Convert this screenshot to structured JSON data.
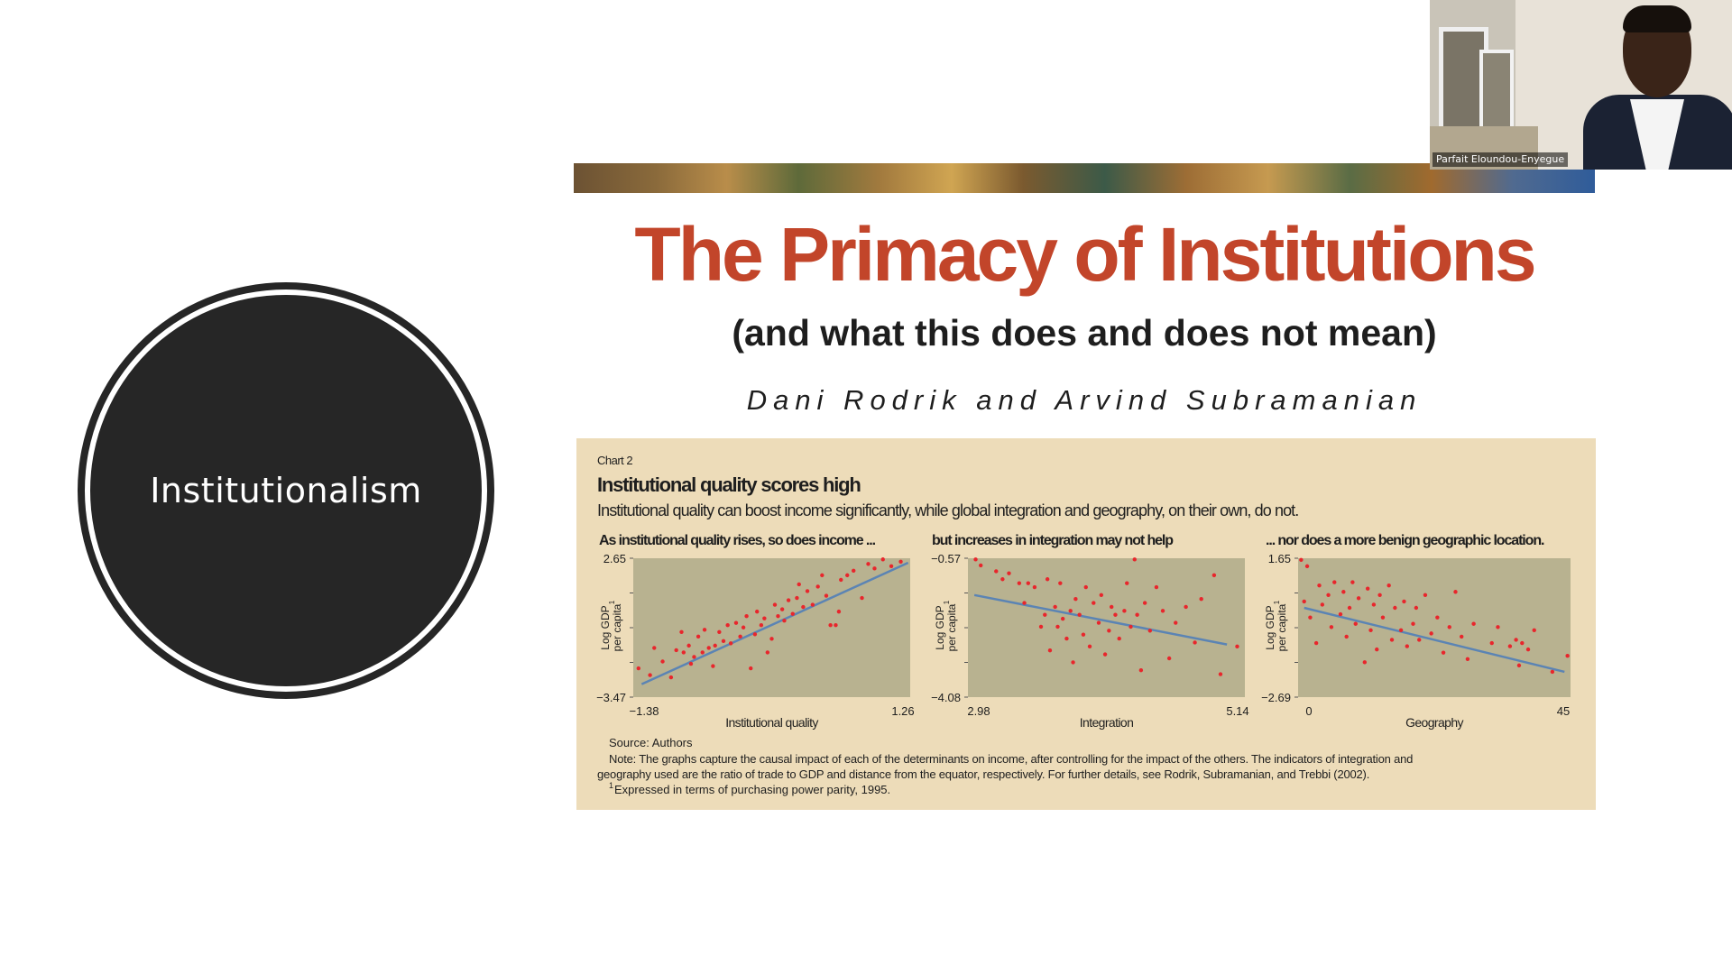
{
  "slide": {
    "circle_label": "Institutionalism"
  },
  "article": {
    "title": "The Primacy of Institutions",
    "subtitle": "(and what this does and does not mean)",
    "authors": "Dani Rodrik and Arvind Subramanian"
  },
  "chart_panel": {
    "chart_number": "Chart 2",
    "heading": "Institutional quality scores high",
    "description": "Institutional quality can boost income significantly, while global integration and geography, on their own, do not.",
    "source": "Source: Authors",
    "note_line1": "Note: The graphs capture the causal impact of each of the determinants on income, after controlling for the impact of the others. The indicators of integration and",
    "note_line2": "geography used are the ratio of trade to GDP and distance from the equator, respectively. For further details, see Rodrik, Subramanian, and Trebbi (2002).",
    "footnote_mark": "1",
    "footnote": "Expressed in terms of purchasing power parity, 1995.",
    "ylabel_line1": "Log GDP",
    "ylabel_line2": "per capita",
    "ylabel_sup": "1"
  },
  "video": {
    "participant_name": "Parfait Eloundou-Enyegue"
  },
  "colors": {
    "title_red": "#c2452a",
    "panel_bg": "#eddcb9",
    "plot_bg": "#b8b290",
    "point_red": "#e8262c",
    "trend_blue": "#5b84b4"
  },
  "chart_data": [
    {
      "type": "scatter",
      "title": "As institutional quality rises, so does income ...",
      "xlabel": "Institutional quality",
      "ylabel": "Log GDP per capita1",
      "xlim": [
        -1.38,
        1.26
      ],
      "ylim": [
        -3.47,
        2.65
      ],
      "x_ticks": [
        "−1.38",
        "1.26"
      ],
      "y_ticks": [
        "2.65",
        "−3.47"
      ],
      "trend": [
        [
          -1.3,
          -2.9
        ],
        [
          1.24,
          2.45
        ]
      ],
      "points": [
        [
          -1.33,
          -2.2
        ],
        [
          -1.22,
          -2.5
        ],
        [
          -1.18,
          -1.3
        ],
        [
          -1.1,
          -1.9
        ],
        [
          -1.02,
          -2.6
        ],
        [
          -0.97,
          -1.4
        ],
        [
          -0.92,
          -0.6
        ],
        [
          -0.9,
          -1.5
        ],
        [
          -0.85,
          -1.2
        ],
        [
          -0.83,
          -2.0
        ],
        [
          -0.8,
          -1.7
        ],
        [
          -0.76,
          -0.8
        ],
        [
          -0.72,
          -1.5
        ],
        [
          -0.7,
          -0.5
        ],
        [
          -0.66,
          -1.3
        ],
        [
          -0.62,
          -2.1
        ],
        [
          -0.6,
          -1.2
        ],
        [
          -0.56,
          -0.6
        ],
        [
          -0.52,
          -1.0
        ],
        [
          -0.48,
          -0.3
        ],
        [
          -0.45,
          -1.1
        ],
        [
          -0.4,
          -0.2
        ],
        [
          -0.36,
          -0.8
        ],
        [
          -0.33,
          -0.4
        ],
        [
          -0.3,
          0.1
        ],
        [
          -0.26,
          -2.2
        ],
        [
          -0.22,
          -0.7
        ],
        [
          -0.2,
          0.3
        ],
        [
          -0.16,
          -0.3
        ],
        [
          -0.13,
          0.0
        ],
        [
          -0.1,
          -1.5
        ],
        [
          -0.06,
          -0.9
        ],
        [
          -0.03,
          0.6
        ],
        [
          0.0,
          0.1
        ],
        [
          0.04,
          0.4
        ],
        [
          0.06,
          -0.1
        ],
        [
          0.1,
          0.8
        ],
        [
          0.14,
          0.2
        ],
        [
          0.18,
          0.9
        ],
        [
          0.2,
          1.5
        ],
        [
          0.24,
          0.5
        ],
        [
          0.28,
          1.2
        ],
        [
          0.33,
          0.6
        ],
        [
          0.38,
          1.4
        ],
        [
          0.42,
          1.9
        ],
        [
          0.46,
          1.0
        ],
        [
          0.5,
          -0.3
        ],
        [
          0.55,
          -0.3
        ],
        [
          0.58,
          0.3
        ],
        [
          0.6,
          1.7
        ],
        [
          0.66,
          1.9
        ],
        [
          0.72,
          2.1
        ],
        [
          0.8,
          0.9
        ],
        [
          0.86,
          2.4
        ],
        [
          0.92,
          2.2
        ],
        [
          1.0,
          2.6
        ],
        [
          1.08,
          2.3
        ],
        [
          1.17,
          2.5
        ]
      ]
    },
    {
      "type": "scatter",
      "title": "but increases in integration may not help",
      "xlabel": "Integration",
      "ylabel": "Log GDP per capita1",
      "xlim": [
        2.98,
        5.14
      ],
      "ylim": [
        -4.08,
        -0.57
      ],
      "x_ticks": [
        "2.98",
        "5.14"
      ],
      "y_ticks": [
        "−0.57",
        "−4.08"
      ],
      "trend": [
        [
          3.03,
          -1.5
        ],
        [
          5.0,
          -2.75
        ]
      ],
      "points": [
        [
          3.04,
          -0.6
        ],
        [
          3.08,
          -0.75
        ],
        [
          3.2,
          -0.9
        ],
        [
          3.25,
          -1.1
        ],
        [
          3.3,
          -0.95
        ],
        [
          3.38,
          -1.2
        ],
        [
          3.42,
          -1.7
        ],
        [
          3.45,
          -1.2
        ],
        [
          3.5,
          -1.3
        ],
        [
          3.55,
          -2.3
        ],
        [
          3.58,
          -2.0
        ],
        [
          3.6,
          -1.1
        ],
        [
          3.62,
          -2.9
        ],
        [
          3.66,
          -1.8
        ],
        [
          3.68,
          -2.3
        ],
        [
          3.7,
          -1.2
        ],
        [
          3.72,
          -2.1
        ],
        [
          3.75,
          -2.6
        ],
        [
          3.78,
          -1.9
        ],
        [
          3.8,
          -3.2
        ],
        [
          3.82,
          -1.6
        ],
        [
          3.85,
          -2.0
        ],
        [
          3.88,
          -2.5
        ],
        [
          3.9,
          -1.3
        ],
        [
          3.93,
          -2.8
        ],
        [
          3.96,
          -1.7
        ],
        [
          4.0,
          -2.2
        ],
        [
          4.02,
          -1.5
        ],
        [
          4.05,
          -3.0
        ],
        [
          4.08,
          -2.4
        ],
        [
          4.1,
          -1.8
        ],
        [
          4.13,
          -2.0
        ],
        [
          4.16,
          -2.6
        ],
        [
          4.2,
          -1.9
        ],
        [
          4.22,
          -1.2
        ],
        [
          4.25,
          -2.3
        ],
        [
          4.28,
          -0.6
        ],
        [
          4.3,
          -2.0
        ],
        [
          4.33,
          -3.4
        ],
        [
          4.36,
          -1.7
        ],
        [
          4.4,
          -2.4
        ],
        [
          4.45,
          -1.3
        ],
        [
          4.5,
          -1.9
        ],
        [
          4.55,
          -3.1
        ],
        [
          4.6,
          -2.2
        ],
        [
          4.68,
          -1.8
        ],
        [
          4.75,
          -2.7
        ],
        [
          4.8,
          -1.6
        ],
        [
          4.9,
          -1.0
        ],
        [
          4.95,
          -3.5
        ],
        [
          5.08,
          -2.8
        ]
      ]
    },
    {
      "type": "scatter",
      "title": "... nor does a more benign geographic location.",
      "xlabel": "Geography",
      "ylabel": "Log GDP per capita1",
      "xlim": [
        0,
        45
      ],
      "ylim": [
        -2.69,
        1.65
      ],
      "x_ticks": [
        "0",
        "45"
      ],
      "y_ticks": [
        "1.65",
        "−2.69"
      ],
      "trend": [
        [
          1,
          0.1
        ],
        [
          44,
          -1.9
        ]
      ],
      "points": [
        [
          0.5,
          1.6
        ],
        [
          1,
          0.3
        ],
        [
          1.5,
          1.4
        ],
        [
          2,
          -0.2
        ],
        [
          3,
          -1.0
        ],
        [
          3.5,
          0.8
        ],
        [
          4,
          0.2
        ],
        [
          5,
          0.5
        ],
        [
          5.5,
          -0.5
        ],
        [
          6,
          0.9
        ],
        [
          7,
          -0.1
        ],
        [
          7.5,
          0.6
        ],
        [
          8,
          -0.8
        ],
        [
          8.5,
          0.1
        ],
        [
          9,
          0.9
        ],
        [
          9.5,
          -0.4
        ],
        [
          10,
          0.4
        ],
        [
          11,
          -1.6
        ],
        [
          11.5,
          0.7
        ],
        [
          12,
          -0.6
        ],
        [
          12.5,
          0.2
        ],
        [
          13,
          -1.2
        ],
        [
          13.5,
          0.5
        ],
        [
          14,
          -0.2
        ],
        [
          15,
          0.8
        ],
        [
          15.5,
          -0.9
        ],
        [
          16,
          0.1
        ],
        [
          17,
          -0.6
        ],
        [
          17.5,
          0.3
        ],
        [
          18,
          -1.1
        ],
        [
          19,
          -0.4
        ],
        [
          19.5,
          0.1
        ],
        [
          20,
          -0.9
        ],
        [
          21,
          0.5
        ],
        [
          22,
          -0.7
        ],
        [
          23,
          -0.2
        ],
        [
          24,
          -1.3
        ],
        [
          25,
          -0.5
        ],
        [
          26,
          0.6
        ],
        [
          27,
          -0.8
        ],
        [
          28,
          -1.5
        ],
        [
          29,
          -0.4
        ],
        [
          32,
          -1.0
        ],
        [
          33,
          -0.5
        ],
        [
          35,
          -1.1
        ],
        [
          36,
          -0.9
        ],
        [
          36.5,
          -1.7
        ],
        [
          37,
          -1.0
        ],
        [
          38,
          -1.2
        ],
        [
          39,
          -0.6
        ],
        [
          42,
          -1.9
        ],
        [
          44.5,
          -1.4
        ]
      ]
    }
  ]
}
